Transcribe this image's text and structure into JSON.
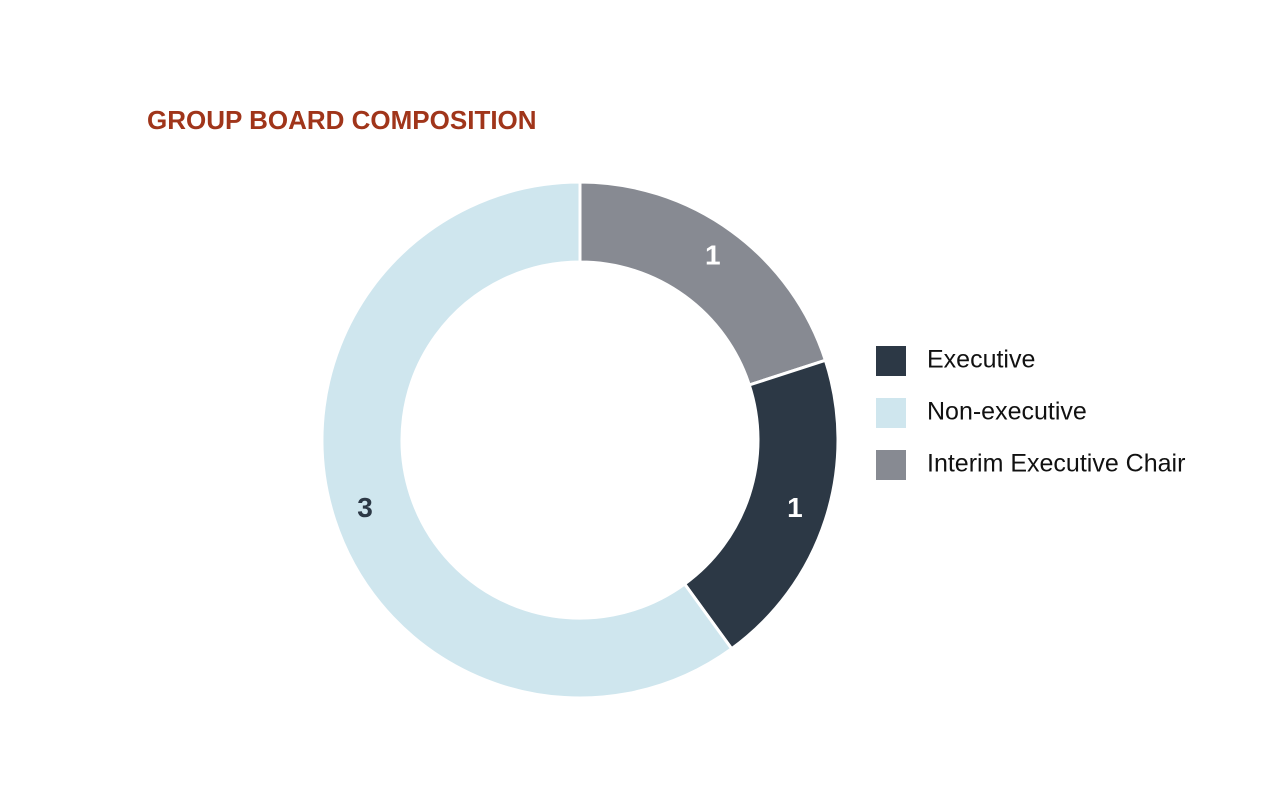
{
  "chart_data": {
    "type": "donut",
    "title": "GROUP BOARD COMPOSITION",
    "categories": [
      "Executive",
      "Non-executive",
      "Interim Executive Chair"
    ],
    "values": [
      1,
      3,
      1
    ],
    "colors": [
      "#2c3845",
      "#cfe6ee",
      "#878a92"
    ]
  }
}
